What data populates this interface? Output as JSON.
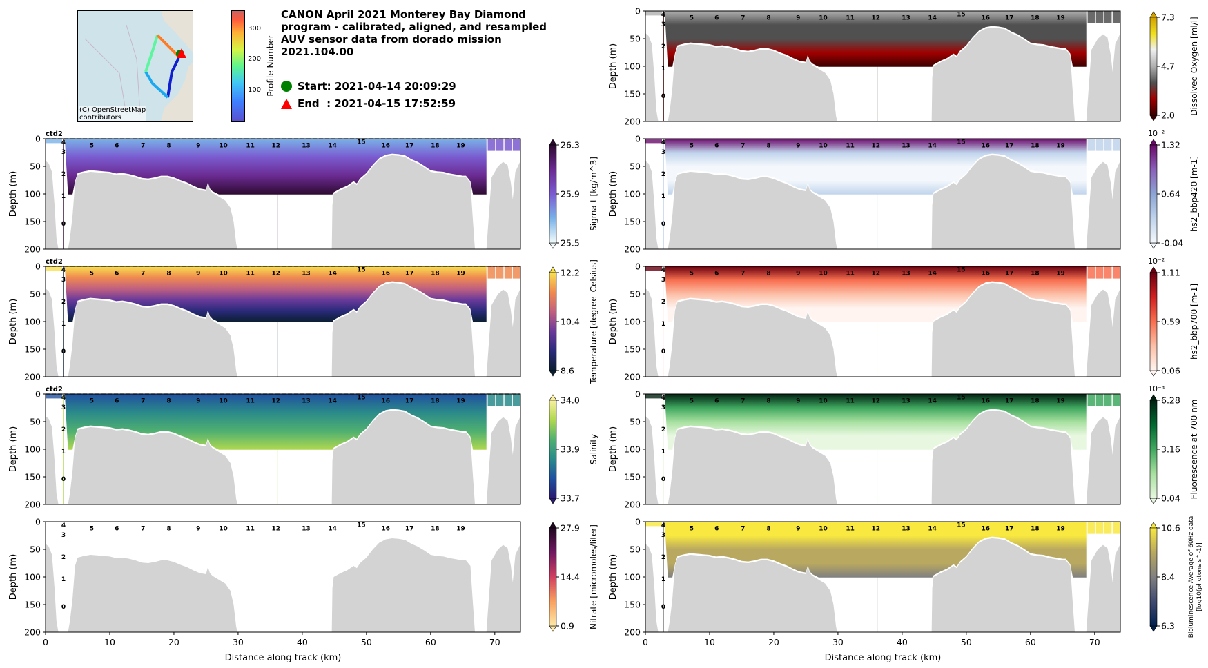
{
  "header": {
    "title": "CANON April 2021 Monterey Bay Diamond program - calibrated, aligned, and resampled AUV sensor data from dorado mission 2021.104.00",
    "start_label": "Start: 2021-04-14 20:09:29",
    "end_label": "End  : 2021-04-15 17:52:59",
    "start_color": "#008000",
    "end_color": "#ff0000"
  },
  "map": {
    "credit_line1": "(C) OpenStreetMap",
    "credit_line2": "contributors",
    "colorbar_label": "Profile Number",
    "colorbar_ticks": [
      "100",
      "200",
      "300"
    ],
    "colorbar_range": [
      0,
      360
    ]
  },
  "chart_data": [
    {
      "id": "sigma_t",
      "type": "heatmap",
      "panel": "left-2",
      "ylabel": "Depth (m)",
      "xlabel": "",
      "ylim": [
        200,
        0
      ],
      "xlim": [
        0,
        74
      ],
      "cbar_label": "Sigma-t [kg/m^3]",
      "cbar_ticks": [
        "26.3",
        "25.9",
        "25.5"
      ],
      "cbar_exp": "",
      "vmin": 25.5,
      "vmax": 26.3,
      "tag": "ctd2",
      "colors": [
        "#f2fbfb",
        "#7ab2e8",
        "#7a5bd0",
        "#6a2a90",
        "#2d0a30"
      ]
    },
    {
      "id": "temperature",
      "type": "heatmap",
      "panel": "left-3",
      "ylabel": "Depth (m)",
      "xlabel": "",
      "ylim": [
        200,
        0
      ],
      "xlim": [
        0,
        74
      ],
      "cbar_label": "Temperature [degree_Celsius]",
      "cbar_ticks": [
        "12.2",
        "10.4",
        "8.6"
      ],
      "cbar_exp": "",
      "vmin": 8.6,
      "vmax": 12.2,
      "tag": "ctd2",
      "colors": [
        "#0a1e30",
        "#2a2a7a",
        "#6a3a9a",
        "#c06080",
        "#f08a50",
        "#f8e050"
      ]
    },
    {
      "id": "salinity",
      "type": "heatmap",
      "panel": "left-4",
      "ylabel": "Depth (m)",
      "xlabel": "",
      "ylim": [
        200,
        0
      ],
      "xlim": [
        0,
        74
      ],
      "cbar_label": "Salinity",
      "cbar_ticks": [
        "34.0",
        "33.9",
        "33.7"
      ],
      "cbar_exp": "",
      "vmin": 33.7,
      "vmax": 34.0,
      "tag": "ctd2",
      "colors": [
        "#2a1a70",
        "#2050a0",
        "#2a8a8a",
        "#50b070",
        "#b0d850",
        "#f8f0a0"
      ]
    },
    {
      "id": "nitrate",
      "type": "heatmap",
      "panel": "left-5",
      "ylabel": "Depth (m)",
      "xlabel": "Distance along track (km)",
      "ylim": [
        200,
        0
      ],
      "xlim": [
        0,
        74
      ],
      "cbar_label": "Nitrate [micromoles/liter]",
      "cbar_ticks": [
        "27.9",
        "14.4",
        "0.9"
      ],
      "cbar_exp": "",
      "vmin": 0.9,
      "vmax": 27.9,
      "tag": "",
      "colors": [
        "#fde8a8",
        "#f8a060",
        "#d04060",
        "#701860",
        "#200820"
      ]
    },
    {
      "id": "oxygen",
      "type": "heatmap",
      "panel": "right-1",
      "ylabel": "Depth (m)",
      "xlabel": "",
      "ylim": [
        200,
        0
      ],
      "xlim": [
        0,
        74
      ],
      "cbar_label": "Dissolved Oxygen [ml/l]",
      "cbar_ticks": [
        "7.3",
        "4.7",
        "2.0"
      ],
      "cbar_exp": "",
      "vmin": 2.0,
      "vmax": 7.3,
      "tag": "",
      "colors": [
        "#3a0000",
        "#a00000",
        "#505050",
        "#b0b0b0",
        "#f0f0f0",
        "#f0e020",
        "#d0a000"
      ]
    },
    {
      "id": "bbp420",
      "type": "heatmap",
      "panel": "right-2",
      "ylabel": "Depth (m)",
      "xlabel": "",
      "ylim": [
        200,
        0
      ],
      "xlim": [
        0,
        74
      ],
      "cbar_label": "hs2_bbp420 [m-1]",
      "cbar_ticks": [
        "1.32",
        "0.64",
        "-0.04"
      ],
      "cbar_exp": "10⁻²",
      "vmin": -0.04,
      "vmax": 1.32,
      "tag": "",
      "colors": [
        "#f4f8fc",
        "#c0d4ec",
        "#8ca4d4",
        "#8a60b8",
        "#6a0a6a"
      ]
    },
    {
      "id": "bbp700",
      "type": "heatmap",
      "panel": "right-3",
      "ylabel": "Depth (m)",
      "xlabel": "",
      "ylim": [
        200,
        0
      ],
      "xlim": [
        0,
        74
      ],
      "cbar_label": "hs2_bbp700 [m-1]",
      "cbar_ticks": [
        "1.11",
        "0.59",
        "0.06"
      ],
      "cbar_exp": "10⁻²",
      "vmin": 0.06,
      "vmax": 1.11,
      "tag": "",
      "colors": [
        "#fff4f0",
        "#fcc0a8",
        "#f87050",
        "#d02020",
        "#6a0010"
      ]
    },
    {
      "id": "fluorescence",
      "type": "heatmap",
      "panel": "right-4",
      "ylabel": "Depth (m)",
      "xlabel": "",
      "ylim": [
        200,
        0
      ],
      "xlim": [
        0,
        74
      ],
      "cbar_label": "Fluorescence at 700 nm",
      "cbar_ticks": [
        "6.28",
        "3.16",
        "0.04"
      ],
      "cbar_exp": "10⁻³",
      "vmin": 0.04,
      "vmax": 6.28,
      "tag": "",
      "colors": [
        "#e8f8e0",
        "#a8e0a0",
        "#40a860",
        "#006830",
        "#002010"
      ]
    },
    {
      "id": "bioluminescence",
      "type": "heatmap",
      "panel": "right-5",
      "ylabel": "Depth (m)",
      "xlabel": "Distance along track (km)",
      "ylim": [
        200,
        0
      ],
      "xlim": [
        0,
        74
      ],
      "cbar_label": "Bioluminescence Average of 60Hz data",
      "cbar_label2": "[log10(photons s^-1)]",
      "cbar_ticks": [
        "10.6",
        "8.4",
        "6.3"
      ],
      "cbar_exp": "",
      "vmin": 6.3,
      "vmax": 10.6,
      "tag": "",
      "colors": [
        "#002050",
        "#404a70",
        "#808080",
        "#b8a860",
        "#f8e840"
      ]
    }
  ],
  "axes": {
    "yticks": [
      "0",
      "50",
      "100",
      "150",
      "200"
    ],
    "ytick_values": [
      0,
      50,
      100,
      150,
      200
    ],
    "xticks": [
      "0",
      "10",
      "20",
      "30",
      "40",
      "50",
      "60",
      "70"
    ],
    "xtick_values": [
      0,
      10,
      20,
      30,
      40,
      50,
      60,
      70
    ]
  },
  "sections": [
    {
      "label": "4",
      "km": 2.8,
      "depth": 4
    },
    {
      "label": "3",
      "km": 2.8,
      "depth": 16
    },
    {
      "label": "2",
      "km": 2.8,
      "depth": 60
    },
    {
      "label": "1",
      "km": 2.8,
      "depth": 100
    },
    {
      "label": "0",
      "km": 2.8,
      "depth": 150
    },
    {
      "label": "5",
      "km": 7.2,
      "depth": 8
    },
    {
      "label": "6",
      "km": 11.1,
      "depth": 8
    },
    {
      "label": "7",
      "km": 15.2,
      "depth": 8
    },
    {
      "label": "8",
      "km": 19.2,
      "depth": 8
    },
    {
      "label": "9",
      "km": 23.8,
      "depth": 8
    },
    {
      "label": "10",
      "km": 27.7,
      "depth": 8
    },
    {
      "label": "11",
      "km": 31.9,
      "depth": 8
    },
    {
      "label": "12",
      "km": 35.9,
      "depth": 8
    },
    {
      "label": "13",
      "km": 40.6,
      "depth": 8
    },
    {
      "label": "14",
      "km": 44.7,
      "depth": 8
    },
    {
      "label": "15",
      "km": 49.2,
      "depth": 2
    },
    {
      "label": "16",
      "km": 53.0,
      "depth": 8
    },
    {
      "label": "17",
      "km": 56.7,
      "depth": 8
    },
    {
      "label": "18",
      "km": 60.7,
      "depth": 8
    },
    {
      "label": "19",
      "km": 64.7,
      "depth": 8
    }
  ],
  "bathymetry": {
    "km": [
      0,
      0.5,
      1.0,
      1.4,
      1.7,
      2.0,
      3.5,
      3.8,
      4.2,
      4.6,
      5.0,
      6,
      7,
      8,
      9,
      10,
      11,
      12,
      13,
      14,
      15,
      16,
      17,
      18,
      19,
      20,
      21,
      22,
      23,
      24,
      25,
      25.3,
      25.6,
      26,
      27,
      28,
      28.8,
      29.3,
      29.7,
      29.9,
      44.6,
      44.7,
      44.9,
      46,
      47,
      48,
      48.5,
      49,
      50,
      51,
      52,
      53,
      54,
      55,
      56,
      57,
      58,
      59,
      60,
      61,
      62,
      63,
      64,
      65,
      65.5,
      66.2,
      66.6,
      66.9,
      68.7,
      69,
      69.5,
      70.5,
      71.3,
      72,
      72.5,
      72.8,
      73.2,
      74
    ],
    "depth": [
      40,
      45,
      60,
      120,
      180,
      200,
      200,
      180,
      140,
      80,
      65,
      62,
      60,
      61,
      62,
      63,
      66,
      65,
      67,
      70,
      74,
      75,
      73,
      70,
      70,
      73,
      78,
      82,
      88,
      93,
      95,
      82,
      93,
      98,
      105,
      112,
      125,
      150,
      190,
      200,
      200,
      120,
      100,
      93,
      88,
      80,
      84,
      75,
      65,
      50,
      38,
      32,
      30,
      31,
      33,
      40,
      45,
      52,
      60,
      62,
      63,
      66,
      68,
      70,
      70,
      80,
      150,
      200,
      200,
      150,
      70,
      50,
      42,
      48,
      80,
      110,
      60,
      40
    ]
  },
  "data_extent_km": [
    3.0,
    68.7
  ]
}
